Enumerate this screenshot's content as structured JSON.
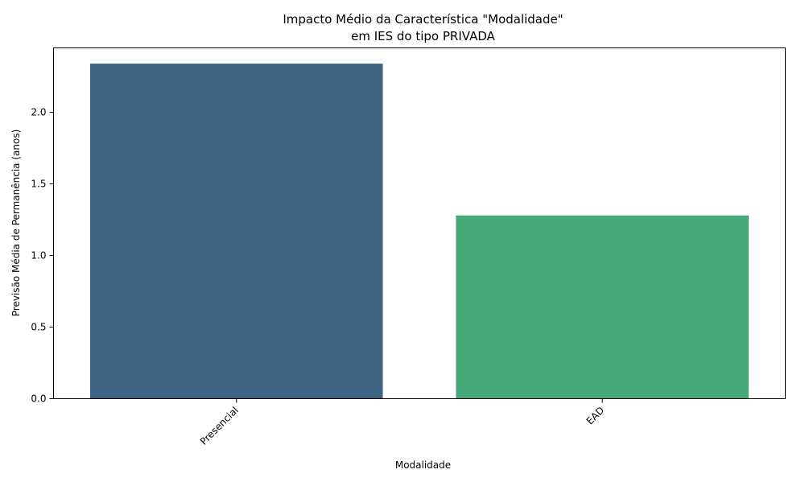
{
  "chart_data": {
    "type": "bar",
    "title_lines": [
      "Impacto Médio da Característica \"Modalidade\"",
      "em IES do tipo PRIVADA"
    ],
    "xlabel": "Modalidade",
    "ylabel": "Previsão Média de Permanência (anos)",
    "categories": [
      "Presencial",
      "EAD"
    ],
    "values": [
      2.34,
      1.28
    ],
    "colors": [
      "#3e6682",
      "#47a878"
    ],
    "ylim": [
      0,
      2.45
    ],
    "yticks": [
      0.0,
      0.5,
      1.0,
      1.5,
      2.0
    ],
    "ytick_labels": [
      "0.0",
      "0.5",
      "1.0",
      "1.5",
      "2.0"
    ],
    "grid": false,
    "legend": "none"
  }
}
